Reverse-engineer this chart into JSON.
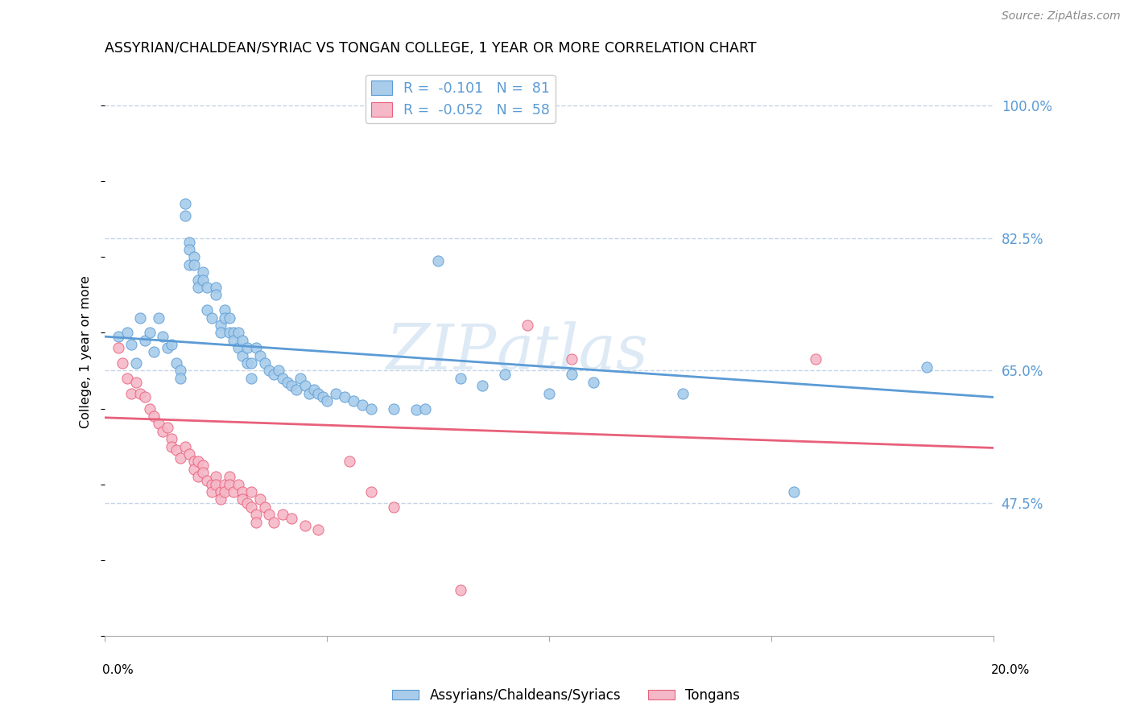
{
  "title": "ASSYRIAN/CHALDEAN/SYRIAC VS TONGAN COLLEGE, 1 YEAR OR MORE CORRELATION CHART",
  "source": "Source: ZipAtlas.com",
  "ylabel": "College, 1 year or more",
  "ytick_vals": [
    0.475,
    0.65,
    0.825,
    1.0
  ],
  "ytick_labels": [
    "47.5%",
    "65.0%",
    "82.5%",
    "100.0%"
  ],
  "xlim": [
    0.0,
    0.2
  ],
  "ylim": [
    0.3,
    1.05
  ],
  "blue_R": "-0.101",
  "blue_N": "81",
  "pink_R": "-0.052",
  "pink_N": "58",
  "blue_color": "#A8CCEA",
  "pink_color": "#F5B8C8",
  "blue_line_color": "#5B9BD5",
  "pink_line_color": "#E8607A",
  "blue_scatter": [
    [
      0.003,
      0.695
    ],
    [
      0.005,
      0.7
    ],
    [
      0.006,
      0.685
    ],
    [
      0.007,
      0.66
    ],
    [
      0.008,
      0.72
    ],
    [
      0.009,
      0.69
    ],
    [
      0.01,
      0.7
    ],
    [
      0.011,
      0.675
    ],
    [
      0.012,
      0.72
    ],
    [
      0.013,
      0.695
    ],
    [
      0.014,
      0.68
    ],
    [
      0.015,
      0.685
    ],
    [
      0.016,
      0.66
    ],
    [
      0.017,
      0.65
    ],
    [
      0.017,
      0.64
    ],
    [
      0.018,
      0.87
    ],
    [
      0.018,
      0.855
    ],
    [
      0.019,
      0.82
    ],
    [
      0.019,
      0.81
    ],
    [
      0.019,
      0.79
    ],
    [
      0.02,
      0.8
    ],
    [
      0.02,
      0.79
    ],
    [
      0.021,
      0.77
    ],
    [
      0.021,
      0.76
    ],
    [
      0.022,
      0.78
    ],
    [
      0.022,
      0.77
    ],
    [
      0.023,
      0.76
    ],
    [
      0.023,
      0.73
    ],
    [
      0.024,
      0.72
    ],
    [
      0.025,
      0.76
    ],
    [
      0.025,
      0.75
    ],
    [
      0.026,
      0.71
    ],
    [
      0.026,
      0.7
    ],
    [
      0.027,
      0.73
    ],
    [
      0.027,
      0.72
    ],
    [
      0.028,
      0.72
    ],
    [
      0.028,
      0.7
    ],
    [
      0.029,
      0.7
    ],
    [
      0.029,
      0.69
    ],
    [
      0.03,
      0.7
    ],
    [
      0.03,
      0.68
    ],
    [
      0.031,
      0.69
    ],
    [
      0.031,
      0.67
    ],
    [
      0.032,
      0.68
    ],
    [
      0.032,
      0.66
    ],
    [
      0.033,
      0.66
    ],
    [
      0.033,
      0.64
    ],
    [
      0.034,
      0.68
    ],
    [
      0.035,
      0.67
    ],
    [
      0.036,
      0.66
    ],
    [
      0.037,
      0.65
    ],
    [
      0.038,
      0.645
    ],
    [
      0.039,
      0.65
    ],
    [
      0.04,
      0.64
    ],
    [
      0.041,
      0.635
    ],
    [
      0.042,
      0.63
    ],
    [
      0.043,
      0.625
    ],
    [
      0.044,
      0.64
    ],
    [
      0.045,
      0.63
    ],
    [
      0.046,
      0.62
    ],
    [
      0.047,
      0.625
    ],
    [
      0.048,
      0.62
    ],
    [
      0.049,
      0.615
    ],
    [
      0.05,
      0.61
    ],
    [
      0.052,
      0.62
    ],
    [
      0.054,
      0.615
    ],
    [
      0.056,
      0.61
    ],
    [
      0.058,
      0.605
    ],
    [
      0.06,
      0.6
    ],
    [
      0.065,
      0.6
    ],
    [
      0.07,
      0.598
    ],
    [
      0.072,
      0.6
    ],
    [
      0.075,
      0.795
    ],
    [
      0.08,
      0.64
    ],
    [
      0.085,
      0.63
    ],
    [
      0.09,
      0.645
    ],
    [
      0.1,
      0.62
    ],
    [
      0.105,
      0.645
    ],
    [
      0.11,
      0.635
    ],
    [
      0.13,
      0.62
    ],
    [
      0.155,
      0.49
    ],
    [
      0.185,
      0.655
    ]
  ],
  "pink_scatter": [
    [
      0.003,
      0.68
    ],
    [
      0.004,
      0.66
    ],
    [
      0.005,
      0.64
    ],
    [
      0.006,
      0.62
    ],
    [
      0.007,
      0.635
    ],
    [
      0.008,
      0.62
    ],
    [
      0.009,
      0.615
    ],
    [
      0.01,
      0.6
    ],
    [
      0.011,
      0.59
    ],
    [
      0.012,
      0.58
    ],
    [
      0.013,
      0.57
    ],
    [
      0.014,
      0.575
    ],
    [
      0.015,
      0.56
    ],
    [
      0.015,
      0.55
    ],
    [
      0.016,
      0.545
    ],
    [
      0.017,
      0.535
    ],
    [
      0.018,
      0.55
    ],
    [
      0.019,
      0.54
    ],
    [
      0.02,
      0.53
    ],
    [
      0.02,
      0.52
    ],
    [
      0.021,
      0.53
    ],
    [
      0.021,
      0.51
    ],
    [
      0.022,
      0.525
    ],
    [
      0.022,
      0.515
    ],
    [
      0.023,
      0.505
    ],
    [
      0.024,
      0.5
    ],
    [
      0.024,
      0.49
    ],
    [
      0.025,
      0.51
    ],
    [
      0.025,
      0.5
    ],
    [
      0.026,
      0.49
    ],
    [
      0.026,
      0.48
    ],
    [
      0.027,
      0.5
    ],
    [
      0.027,
      0.49
    ],
    [
      0.028,
      0.51
    ],
    [
      0.028,
      0.5
    ],
    [
      0.029,
      0.49
    ],
    [
      0.03,
      0.5
    ],
    [
      0.031,
      0.49
    ],
    [
      0.031,
      0.48
    ],
    [
      0.032,
      0.475
    ],
    [
      0.033,
      0.49
    ],
    [
      0.033,
      0.47
    ],
    [
      0.034,
      0.46
    ],
    [
      0.034,
      0.45
    ],
    [
      0.035,
      0.48
    ],
    [
      0.036,
      0.47
    ],
    [
      0.037,
      0.46
    ],
    [
      0.038,
      0.45
    ],
    [
      0.04,
      0.46
    ],
    [
      0.042,
      0.455
    ],
    [
      0.045,
      0.445
    ],
    [
      0.048,
      0.44
    ],
    [
      0.055,
      0.53
    ],
    [
      0.06,
      0.49
    ],
    [
      0.065,
      0.47
    ],
    [
      0.08,
      0.36
    ],
    [
      0.095,
      0.71
    ],
    [
      0.105,
      0.665
    ],
    [
      0.16,
      0.665
    ]
  ],
  "blue_trend_x": [
    0.0,
    0.2
  ],
  "blue_trend_y": [
    0.695,
    0.615
  ],
  "pink_trend_x": [
    0.0,
    0.2
  ],
  "pink_trend_y": [
    0.588,
    0.548
  ],
  "watermark_top": "ZIP",
  "watermark_bottom": "atlas",
  "grid_color": "#C5D5E8",
  "background_color": "#FFFFFF"
}
